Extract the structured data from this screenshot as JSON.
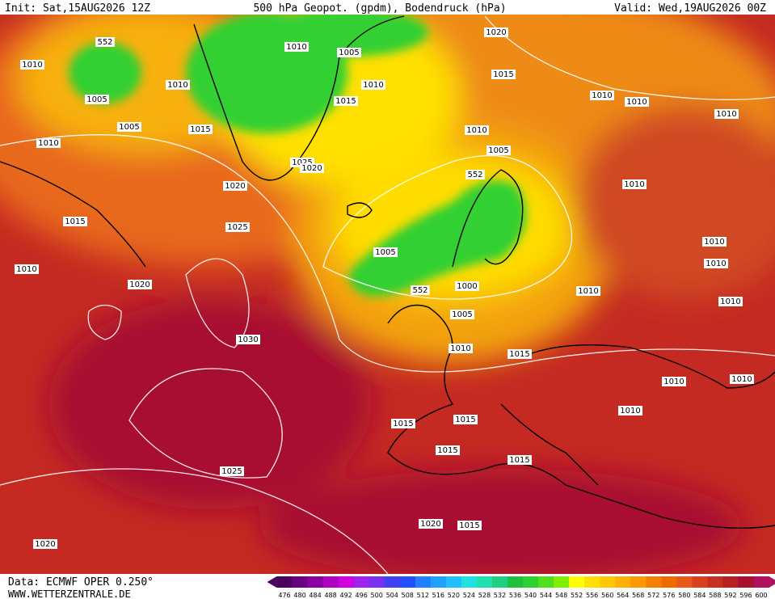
{
  "header": {
    "init": "Init: Sat,15AUG2026 12Z",
    "title": "500 hPa Geopot. (gpdm), Bodendruck (hPa)",
    "valid": "Valid: Wed,19AUG2026 00Z"
  },
  "isobar_labels": [
    "552",
    "1010",
    "1010",
    "1005",
    "1005",
    "1010",
    "1015",
    "1010",
    "1005",
    "1010",
    "1015",
    "1020",
    "1015",
    "1010",
    "1010",
    "1010",
    "1010",
    "1005",
    "1025",
    "1020",
    "552",
    "1020",
    "1010",
    "1015",
    "1025",
    "1010",
    "1005",
    "1020",
    "1010",
    "1010",
    "552",
    "1000",
    "1010",
    "1010",
    "1005",
    "1030",
    "1010",
    "1015",
    "1010",
    "1010",
    "1010",
    "1015",
    "1015",
    "1015",
    "1015",
    "1025",
    "1020",
    "1015",
    "1020"
  ],
  "scale": {
    "labels": [
      476,
      480,
      484,
      488,
      492,
      496,
      500,
      504,
      508,
      512,
      516,
      520,
      524,
      528,
      532,
      536,
      540,
      544,
      548,
      552,
      556,
      560,
      564,
      568,
      572,
      576,
      580,
      584,
      588,
      592,
      596,
      600
    ],
    "colors": [
      "#4b0060",
      "#6a0080",
      "#8a00a0",
      "#b000c0",
      "#d000e0",
      "#a020f0",
      "#7a30f0",
      "#4040f0",
      "#2050ff",
      "#2080ff",
      "#20a0ff",
      "#20c0ff",
      "#20e0e0",
      "#20e0b0",
      "#20d080",
      "#20c040",
      "#30d030",
      "#50e020",
      "#80f000",
      "#ffff00",
      "#ffe000",
      "#ffc800",
      "#ffb000",
      "#ff9800",
      "#f88000",
      "#f06a00",
      "#e85818",
      "#d84020",
      "#c83020",
      "#b82020",
      "#a81030",
      "#b01060"
    ]
  },
  "footer": {
    "data": "Data: ECMWF OPER 0.250°",
    "site": "WWW.WETTERZENTRALE.DE"
  }
}
